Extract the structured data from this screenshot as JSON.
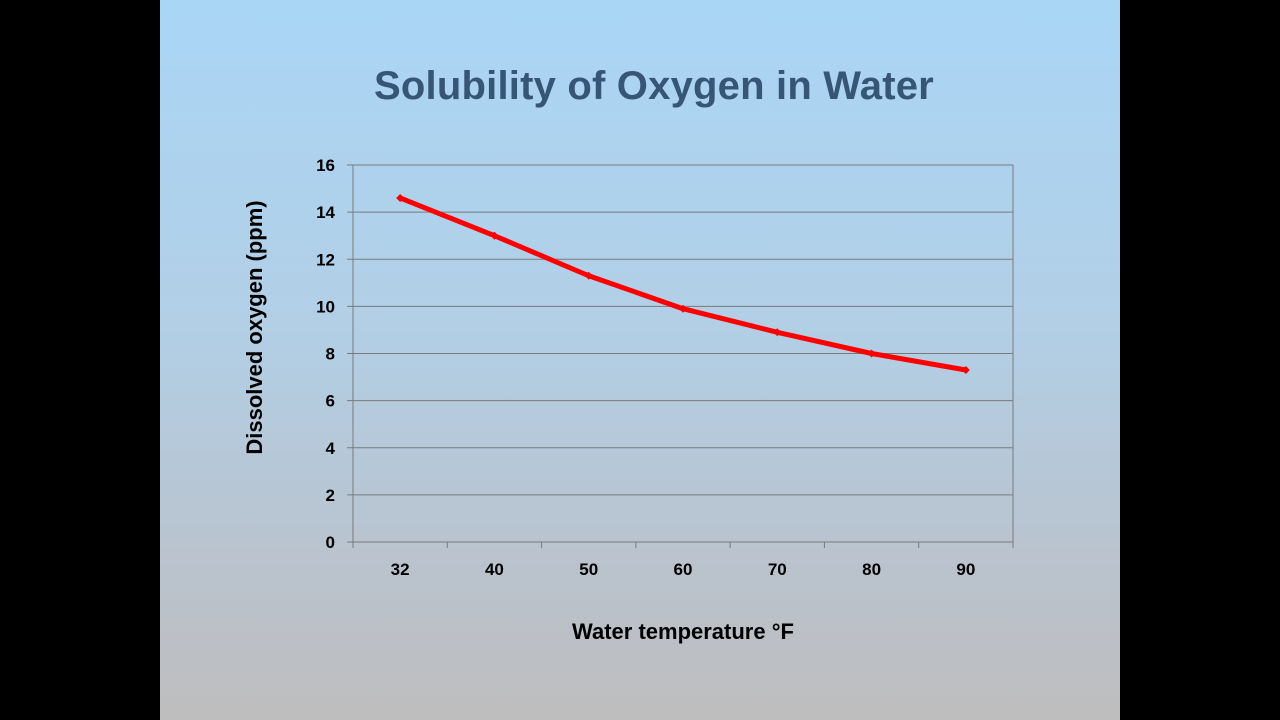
{
  "slide": {
    "title": "Solubility of Oxygen in Water"
  },
  "chart_data": {
    "type": "line",
    "title": "Solubility of Oxygen in Water",
    "categories": [
      "32",
      "40",
      "50",
      "60",
      "70",
      "80",
      "90"
    ],
    "series": [
      {
        "values": [
          14.6,
          13.0,
          11.3,
          9.9,
          8.9,
          8.0,
          7.3
        ],
        "color": "#ff0000"
      }
    ],
    "xlabel": "Water temperature °F",
    "ylabel": "Dissolved oxygen (ppm)",
    "ylim": [
      0,
      16
    ],
    "yticks": [
      0,
      2,
      4,
      6,
      8,
      10,
      12,
      14,
      16
    ],
    "grid": true,
    "legend": "none"
  }
}
